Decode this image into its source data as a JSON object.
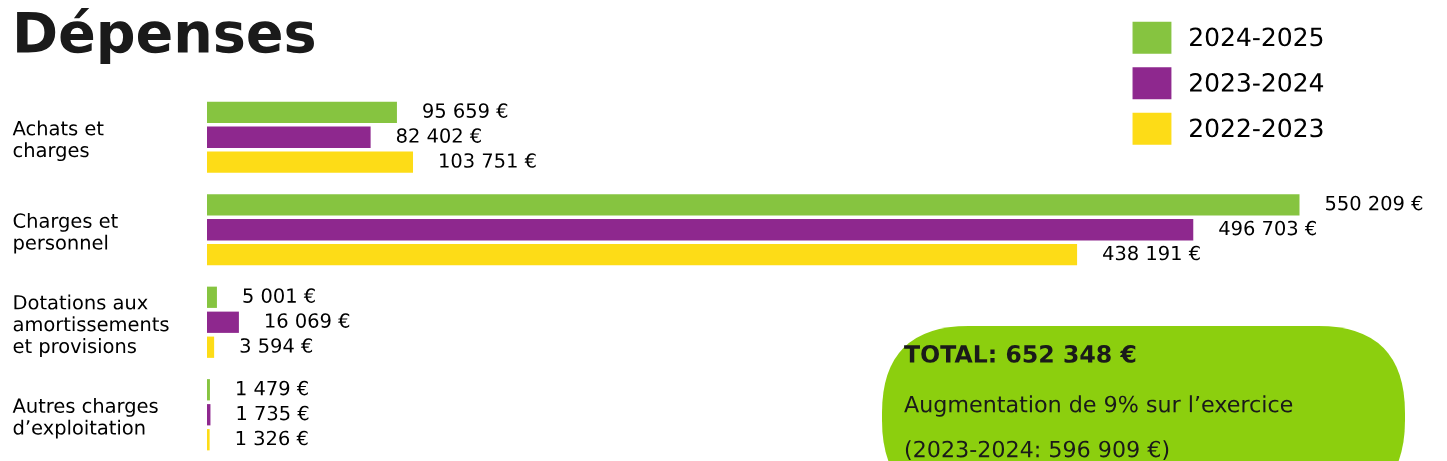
{
  "chart_data": {
    "type": "bar",
    "orientation": "horizontal",
    "title": "Dépenses",
    "categories": [
      "Achats et\ncharges",
      "Charges et\npersonnel",
      "Dotations aux\namortissements\net provisions",
      "Autres charges\nd’exploitation"
    ],
    "series": [
      {
        "name": "2024-2025",
        "color": "#86c440",
        "values": [
          95659,
          550209,
          5001,
          1479
        ],
        "value_labels": [
          "95 659 €",
          "550 209 €",
          "5 001 €",
          "1 479 €"
        ]
      },
      {
        "name": "2023-2024",
        "color": "#8e288e",
        "values": [
          82402,
          496703,
          16069,
          1735
        ],
        "value_labels": [
          "82 402 €",
          "496 703 €",
          "16 069 €",
          "1 735 €"
        ]
      },
      {
        "name": "2022-2023",
        "color": "#fddc17",
        "values": [
          103751,
          438191,
          3594,
          1326
        ],
        "value_labels": [
          "103 751 €",
          "438 191 €",
          "3 594 €",
          "1 326 €"
        ]
      }
    ],
    "legend": "top right",
    "annotations": [
      "TOTAL: 652 348 €",
      "Augmentation de 9% sur l’exercice",
      "(2023-2024: 596 909 €)"
    ]
  }
}
